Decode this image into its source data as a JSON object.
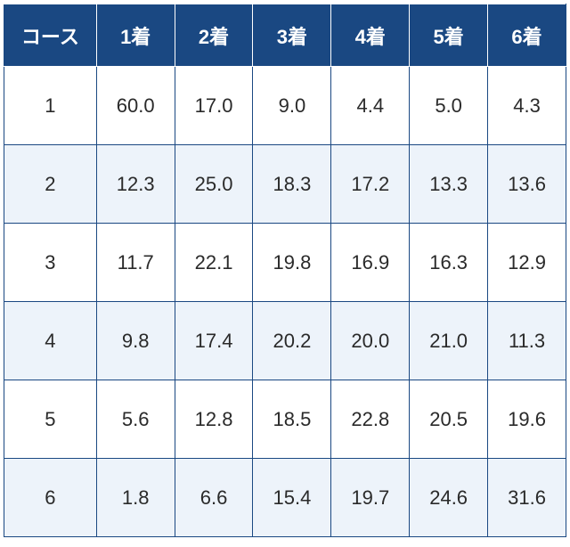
{
  "table": {
    "type": "table",
    "header_bg": "#1a4882",
    "header_fg": "#ffffff",
    "row_bg_odd": "#ffffff",
    "row_bg_even": "#edf3fa",
    "border_color": "#1a4882",
    "highlight_color": "#d8232a",
    "text_color": "#2a2a2a",
    "font_size": 22,
    "columns": [
      "コース",
      "1着",
      "2着",
      "3着",
      "4着",
      "5着",
      "6着"
    ],
    "rows": [
      {
        "course": "1",
        "vals": [
          "60.0",
          "17.0",
          "9.0",
          "4.4",
          "5.0",
          "4.3"
        ],
        "hl": [
          0
        ]
      },
      {
        "course": "2",
        "vals": [
          "12.3",
          "25.0",
          "18.3",
          "17.2",
          "13.3",
          "13.6"
        ],
        "hl": [
          1
        ]
      },
      {
        "course": "3",
        "vals": [
          "11.7",
          "22.1",
          "19.8",
          "16.9",
          "16.3",
          "12.9"
        ],
        "hl": []
      },
      {
        "course": "4",
        "vals": [
          "9.8",
          "17.4",
          "20.2",
          "20.0",
          "21.0",
          "11.3"
        ],
        "hl": [
          2
        ]
      },
      {
        "course": "5",
        "vals": [
          "5.6",
          "12.8",
          "18.5",
          "22.8",
          "20.5",
          "19.6"
        ],
        "hl": [
          3
        ]
      },
      {
        "course": "6",
        "vals": [
          "1.8",
          "6.6",
          "15.4",
          "19.7",
          "24.6",
          "31.6"
        ],
        "hl": [
          4,
          5
        ]
      }
    ]
  }
}
